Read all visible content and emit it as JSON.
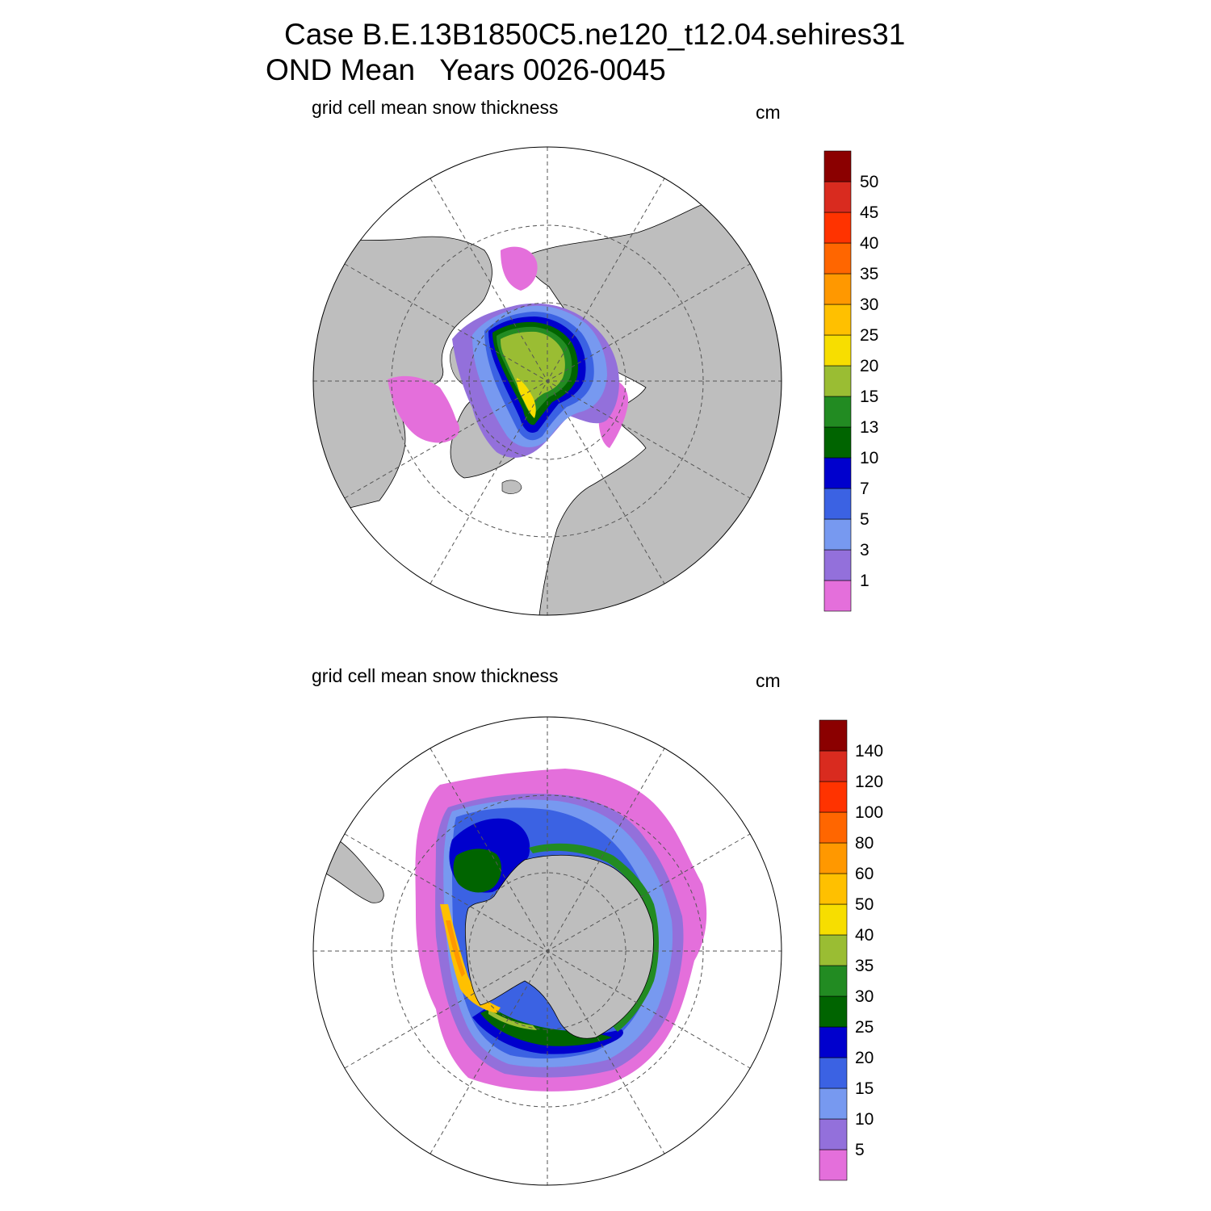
{
  "figure": {
    "title_line1": "Case B.E.13B1850C5.ne120_t12.04.sehires31",
    "title_line2": "OND Mean   Years 0026-0045"
  },
  "panels": [
    {
      "id": "north",
      "hemisphere": "north",
      "subtitle": "grid cell mean snow thickness",
      "units": "cm",
      "colorbar": {
        "colors": [
          "#e46fdb",
          "#9370db",
          "#7799f0",
          "#3b62e3",
          "#0000cd",
          "#006400",
          "#228b22",
          "#9abd33",
          "#f7de00",
          "#ffc000",
          "#ff9800",
          "#ff6600",
          "#ff3300",
          "#d92b1f",
          "#8b0000"
        ],
        "labels": [
          "1",
          "3",
          "5",
          "7",
          "10",
          "13",
          "15",
          "20",
          "25",
          "30",
          "35",
          "40",
          "45",
          "50"
        ]
      }
    },
    {
      "id": "south",
      "hemisphere": "south",
      "subtitle": "grid cell mean snow thickness",
      "units": "cm",
      "colorbar": {
        "colors": [
          "#e46fdb",
          "#9370db",
          "#7799f0",
          "#3b62e3",
          "#0000cd",
          "#006400",
          "#228b22",
          "#9abd33",
          "#f7de00",
          "#ffc000",
          "#ff9800",
          "#ff6600",
          "#ff3300",
          "#d92b1f",
          "#8b0000"
        ],
        "labels": [
          "5",
          "10",
          "15",
          "20",
          "25",
          "30",
          "35",
          "40",
          "50",
          "60",
          "80",
          "100",
          "120",
          "140"
        ]
      }
    }
  ],
  "colors": {
    "land": "#bebebe",
    "ocean": "#ffffff",
    "grid": "#555555"
  }
}
